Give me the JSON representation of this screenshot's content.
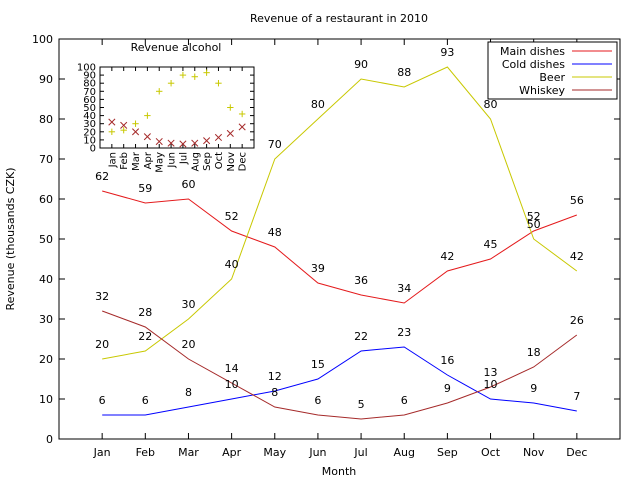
{
  "chart_data": [
    {
      "type": "line",
      "title": "Revenue of a restaurant in 2010",
      "xlabel": "Month",
      "ylabel": "Revenue (thousands CZK)",
      "categories": [
        "Jan",
        "Feb",
        "Mar",
        "Apr",
        "May",
        "Jun",
        "Jul",
        "Aug",
        "Sep",
        "Oct",
        "Nov",
        "Dec"
      ],
      "ylim": [
        0,
        100
      ],
      "yticks": [
        "0",
        "10",
        "20",
        "30",
        "40",
        "50",
        "60",
        "70",
        "80",
        "90",
        "100"
      ],
      "grid": false,
      "legend_position": "top-right",
      "series": [
        {
          "name": "Main dishes",
          "color": "#e41a1c",
          "values": [
            62,
            59,
            60,
            52,
            48,
            39,
            36,
            34,
            42,
            45,
            52,
            56
          ],
          "value_labels": [
            "62",
            "59",
            "60",
            "52",
            "48",
            "39",
            "36",
            "34",
            "42",
            "45",
            "52",
            "56"
          ]
        },
        {
          "name": "Cold dishes",
          "color": "#0000ff",
          "values": [
            6,
            6,
            8,
            10,
            12,
            15,
            22,
            23,
            16,
            10,
            9,
            7
          ],
          "value_labels": [
            "6",
            "6",
            "8",
            "10",
            "12",
            "15",
            "22",
            "23",
            "16",
            "10",
            "9",
            "7"
          ]
        },
        {
          "name": "Beer",
          "color": "#c8c800",
          "values": [
            20,
            22,
            30,
            40,
            70,
            80,
            90,
            88,
            93,
            80,
            50,
            42
          ],
          "value_labels": [
            "20",
            "22",
            "30",
            "40",
            "70",
            "80",
            "90",
            "88",
            "93",
            "80",
            "50",
            "42"
          ]
        },
        {
          "name": "Whiskey",
          "color": "#a52a2a",
          "values": [
            32,
            28,
            20,
            14,
            8,
            6,
            5,
            6,
            9,
            13,
            18,
            26
          ],
          "value_labels": [
            "32",
            "28",
            "20",
            "14",
            "8",
            "6",
            "5",
            "6",
            "9",
            "13",
            "18",
            "26"
          ]
        }
      ]
    },
    {
      "type": "scatter",
      "title": "Revenue  alcohol",
      "categories": [
        "Jan",
        "Feb",
        "Mar",
        "Apr",
        "May",
        "Jun",
        "Jul",
        "Aug",
        "Sep",
        "Oct",
        "Nov",
        "Dec"
      ],
      "ylim": [
        0,
        100
      ],
      "yticks": [
        "0",
        "10",
        "20",
        "30",
        "40",
        "50",
        "60",
        "70",
        "80",
        "90",
        "100"
      ],
      "series": [
        {
          "name": "Beer",
          "marker": "+",
          "color": "#c8c800",
          "values": [
            20,
            22,
            30,
            40,
            70,
            80,
            90,
            88,
            93,
            80,
            50,
            42
          ]
        },
        {
          "name": "Whiskey",
          "marker": "x",
          "color": "#a52a2a",
          "values": [
            32,
            28,
            20,
            14,
            8,
            6,
            5,
            6,
            9,
            13,
            18,
            26
          ]
        }
      ]
    }
  ]
}
